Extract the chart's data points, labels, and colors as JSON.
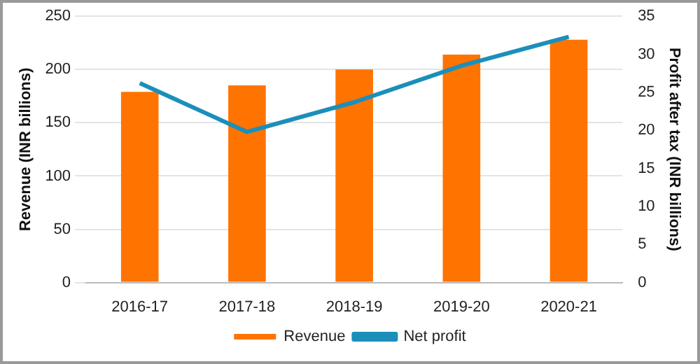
{
  "chart_data": {
    "type": "bar",
    "categories": [
      "2016-17",
      "2017-18",
      "2018-19",
      "2019-20",
      "2020-21"
    ],
    "series": [
      {
        "name": "Revenue",
        "color": "#ff7300",
        "values": [
          179,
          185,
          200,
          214,
          228
        ]
      },
      {
        "name": "Net profit",
        "type": "line",
        "axis": "y2",
        "color": "#1b8fba",
        "values": [
          26.2,
          19.8,
          23.7,
          28.5,
          32.3
        ]
      }
    ],
    "ylabel": "Revenue (INR billions)",
    "y2label": "Profit after tax (INR billions)",
    "ylim": [
      0,
      250
    ],
    "yticks": [
      0,
      50,
      100,
      150,
      200,
      250
    ],
    "y2lim": [
      0,
      35
    ],
    "y2ticks": [
      0,
      5,
      10,
      15,
      20,
      25,
      30,
      35
    ],
    "grid": "y",
    "legend": "bottom",
    "marker": "none"
  }
}
